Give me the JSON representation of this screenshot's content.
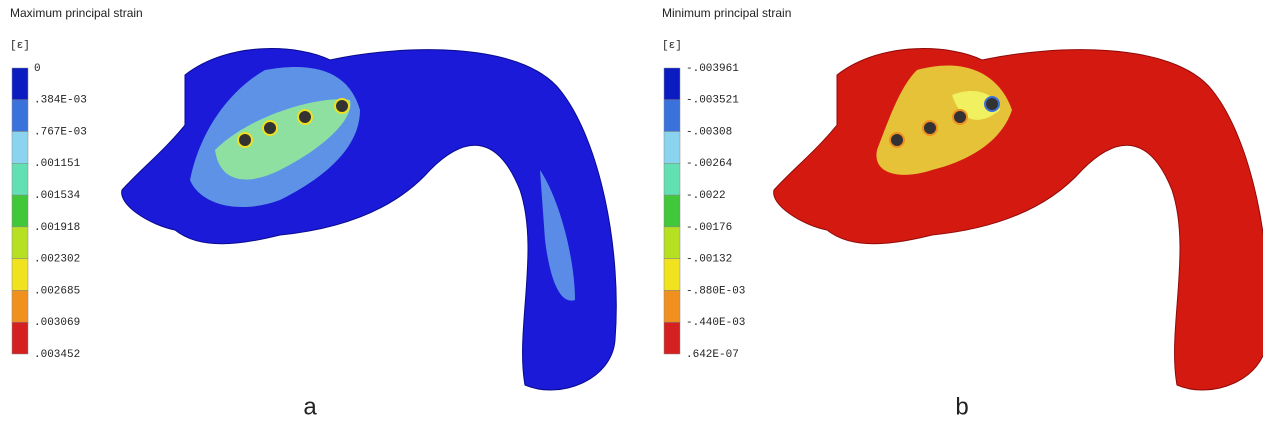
{
  "panels": [
    {
      "title": "Maximum principal strain",
      "unit": "[ε]",
      "letter": "a",
      "legend_labels": [
        "0",
        ".384E-03",
        ".767E-03",
        ".001151",
        ".001534",
        ".001918",
        ".002302",
        ".002685",
        ".003069",
        ".003452"
      ],
      "legend_colors": [
        "#0a1cc0",
        "#3a72dc",
        "#8ad4f0",
        "#62e0b4",
        "#40c83a",
        "#b6e022",
        "#f0e21e",
        "#f0901e",
        "#d42020"
      ]
    },
    {
      "title": "Minimum principal strain",
      "unit": "[ε]",
      "letter": "b",
      "legend_labels": [
        "-.003961",
        "-.003521",
        "-.00308",
        "-.00264",
        "-.0022",
        "-.00176",
        "-.00132",
        "-.880E-03",
        "-.440E-03",
        ".642E-07"
      ],
      "legend_colors": [
        "#0a1cc0",
        "#3a72dc",
        "#8ad4f0",
        "#62e0b4",
        "#40c83a",
        "#b6e022",
        "#f0e21e",
        "#f0901e",
        "#d42020"
      ]
    }
  ]
}
